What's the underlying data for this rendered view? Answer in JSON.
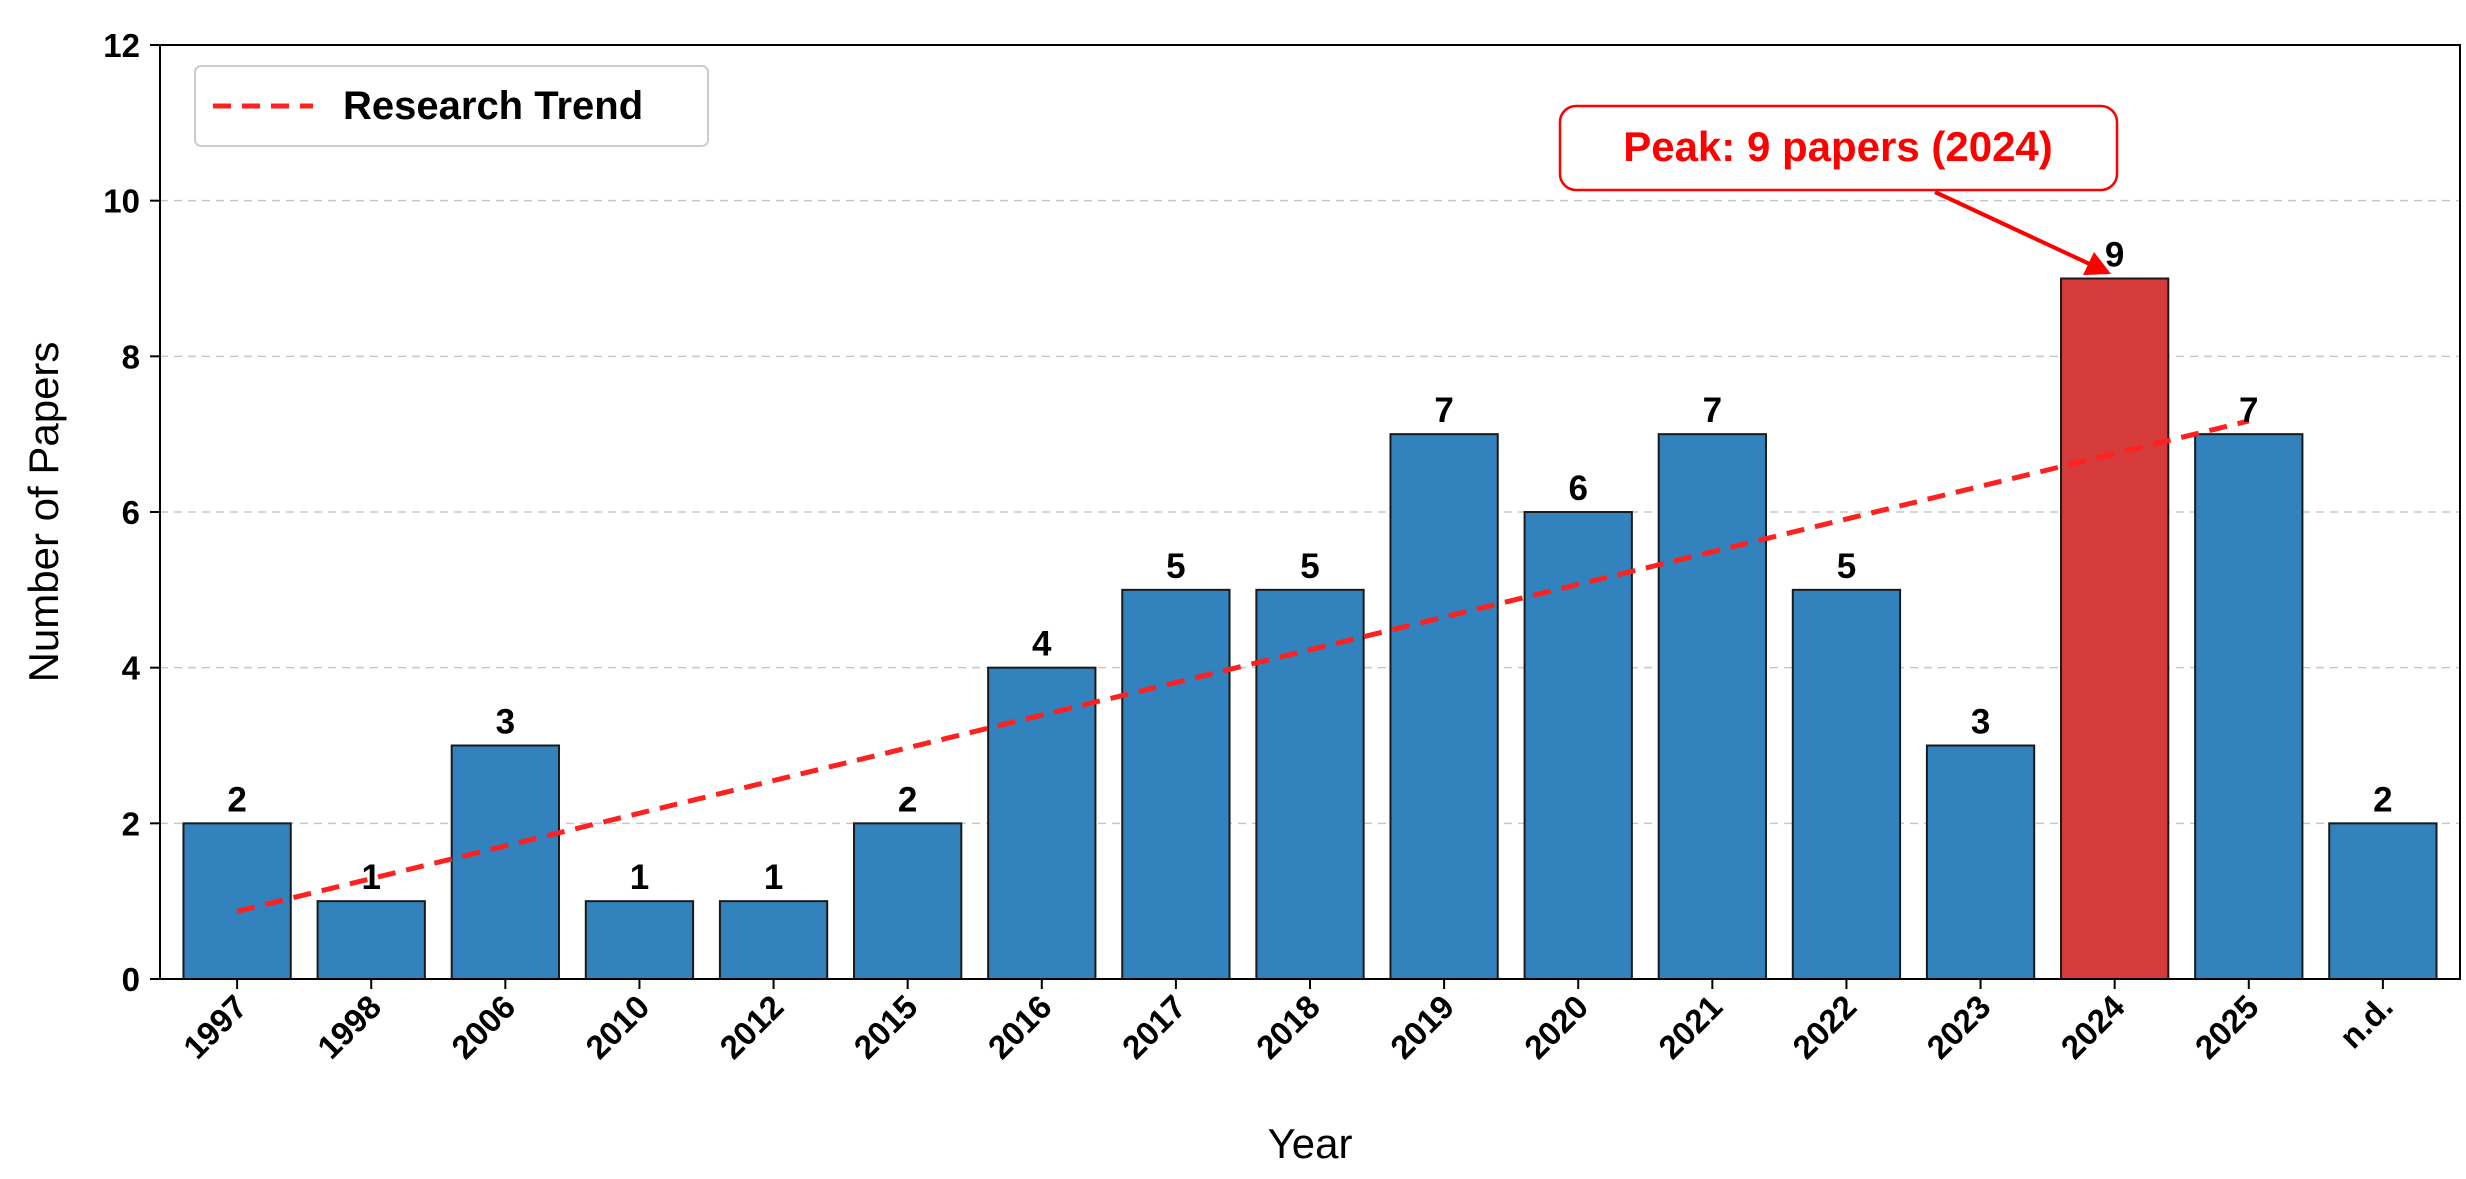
{
  "chart_data": {
    "type": "bar",
    "categories": [
      "1997",
      "1998",
      "2006",
      "2010",
      "2012",
      "2015",
      "2016",
      "2017",
      "2018",
      "2019",
      "2020",
      "2021",
      "2022",
      "2023",
      "2024",
      "2025",
      "n.d."
    ],
    "values": [
      2,
      1,
      3,
      1,
      1,
      2,
      4,
      5,
      5,
      7,
      6,
      7,
      5,
      3,
      9,
      7,
      2
    ],
    "xlabel": "Year",
    "ylabel": "Number of Papers",
    "ylim": [
      0,
      12
    ],
    "yticks": [
      0,
      2,
      4,
      6,
      8,
      10,
      12
    ],
    "grid": "horizontal dashed",
    "bar_color": "#3182bd",
    "highlight_color": "#d63b3b",
    "highlight_category": "2024",
    "trend": {
      "name": "Research Trend",
      "color": "#ff2020",
      "style": "dashed",
      "start": 0.87,
      "end": 7.17
    },
    "legend": {
      "position": "top-left",
      "entries": [
        "Research Trend"
      ]
    },
    "annotation": {
      "text": "Peak: 9 papers (2024)",
      "target_category": "2024",
      "color": "#ff0000"
    }
  }
}
